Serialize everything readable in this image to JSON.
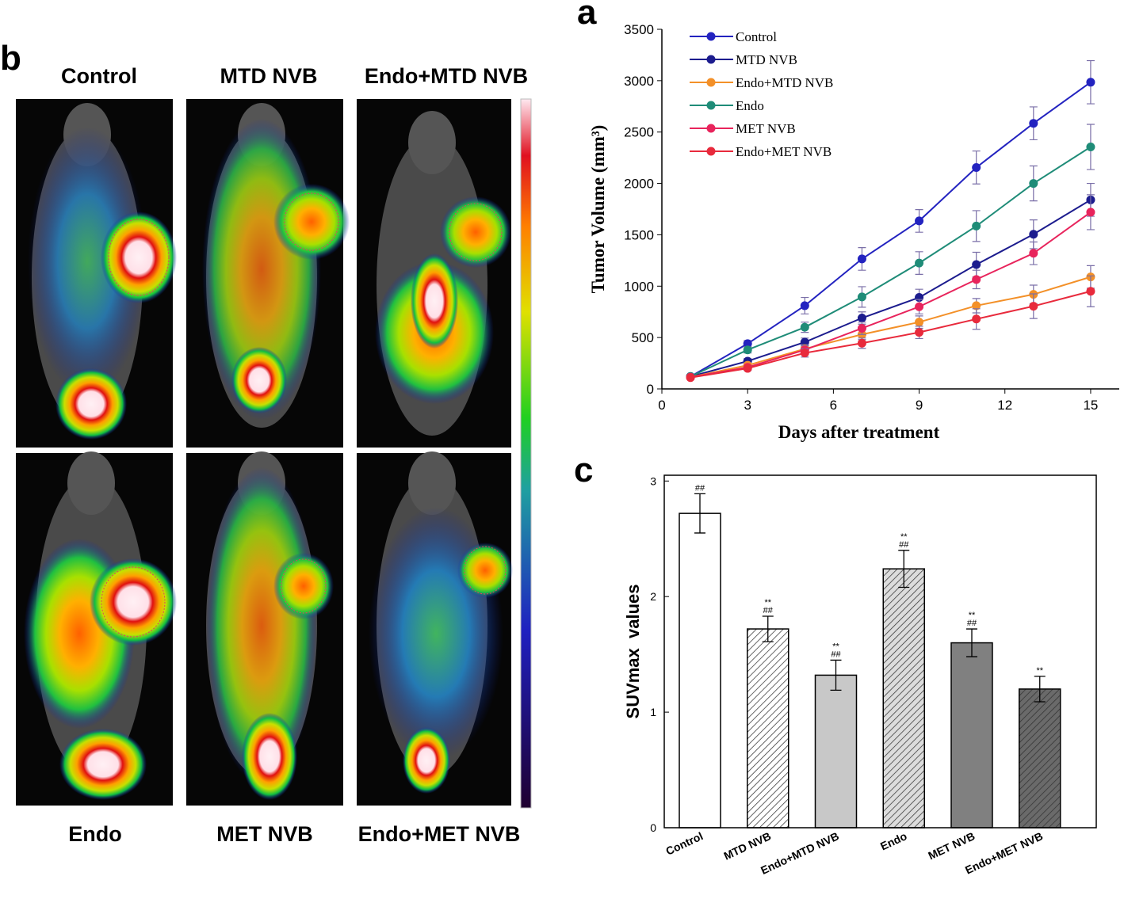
{
  "image_panel": {
    "label": "b",
    "titles_top": [
      "Control",
      "MTD NVB",
      "Endo+MTD NVB"
    ],
    "titles_bottom": [
      "Endo",
      "MET NVB",
      "Endo+MET NVB"
    ]
  },
  "chart_data": [
    {
      "type": "line",
      "panel_label": "a",
      "x_label": "Days after treatment",
      "y_label": "Tumor Volume (mm³)",
      "x": [
        1,
        3,
        5,
        7,
        9,
        11,
        13,
        15
      ],
      "xlim": [
        0,
        16
      ],
      "xticks": [
        0,
        3,
        6,
        9,
        12,
        15
      ],
      "ylim": [
        0,
        3500
      ],
      "yticks": [
        0,
        500,
        1000,
        1500,
        2000,
        2500,
        3000,
        3500
      ],
      "legend": "upper left",
      "errorbar_color": "#7a6fa8",
      "series": [
        {
          "name": "Control",
          "color": "#2323c0",
          "values": [
            120,
            440,
            810,
            1265,
            1635,
            2155,
            2585,
            2985
          ],
          "errors": [
            20,
            30,
            80,
            110,
            110,
            160,
            160,
            210
          ]
        },
        {
          "name": "MTD NVB",
          "color": "#1c1c8e",
          "values": [
            120,
            270,
            455,
            690,
            890,
            1210,
            1505,
            1840
          ],
          "errors": [
            15,
            25,
            40,
            60,
            80,
            120,
            140,
            160
          ]
        },
        {
          "name": "Endo+MTD NVB",
          "color": "#f39028",
          "values": [
            115,
            230,
            390,
            530,
            650,
            810,
            920,
            1090
          ],
          "errors": [
            15,
            25,
            40,
            50,
            60,
            70,
            90,
            110
          ]
        },
        {
          "name": "Endo",
          "color": "#1f8c78",
          "values": [
            120,
            380,
            600,
            895,
            1225,
            1585,
            2000,
            2355
          ],
          "errors": [
            15,
            30,
            50,
            100,
            110,
            150,
            170,
            220
          ]
        },
        {
          "name": "MET NVB",
          "color": "#e8245c",
          "values": [
            115,
            210,
            380,
            590,
            800,
            1065,
            1320,
            1720
          ],
          "errors": [
            15,
            20,
            40,
            60,
            70,
            90,
            110,
            170
          ]
        },
        {
          "name": "Endo+MET NVB",
          "color": "#e82a3c",
          "values": [
            110,
            200,
            350,
            445,
            550,
            680,
            805,
            950
          ],
          "errors": [
            15,
            20,
            40,
            50,
            60,
            100,
            120,
            150
          ]
        }
      ]
    },
    {
      "type": "bar",
      "panel_label": "c",
      "y_label": "SUVmax  values",
      "categories": [
        "Control",
        "MTD NVB",
        "Endo+MTD NVB",
        "Endo",
        "MET NVB",
        "Endo+MET NVB"
      ],
      "values": [
        2.72,
        1.72,
        1.32,
        2.24,
        1.6,
        1.2
      ],
      "errors": [
        0.17,
        0.11,
        0.13,
        0.16,
        0.12,
        0.11
      ],
      "annotations": [
        [
          "##"
        ],
        [
          "**",
          "##"
        ],
        [
          "**",
          "##"
        ],
        [
          "**",
          "##"
        ],
        [
          "**",
          "##"
        ],
        [
          "**"
        ]
      ],
      "colors": [
        "#ffffff",
        "#ffffff",
        "#c8c8c8",
        "#dcdcdc",
        "#808080",
        "#6a6a6a"
      ],
      "hatch": [
        false,
        true,
        false,
        true,
        false,
        true
      ],
      "ylim": [
        0,
        3.05
      ],
      "yticks": [
        0,
        1,
        2,
        3
      ]
    }
  ]
}
